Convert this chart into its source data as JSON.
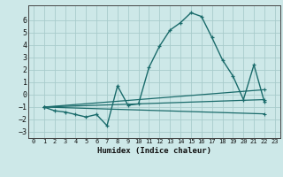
{
  "xlabel": "Humidex (Indice chaleur)",
  "xlim": [
    -0.5,
    23.5
  ],
  "ylim": [
    -3.5,
    7.2
  ],
  "yticks": [
    -3,
    -2,
    -1,
    0,
    1,
    2,
    3,
    4,
    5,
    6
  ],
  "xticks": [
    0,
    1,
    2,
    3,
    4,
    5,
    6,
    7,
    8,
    9,
    10,
    11,
    12,
    13,
    14,
    15,
    16,
    17,
    18,
    19,
    20,
    21,
    22,
    23
  ],
  "bg_color": "#cde8e8",
  "grid_color": "#a8cccc",
  "line_color": "#1a6b6b",
  "lines": [
    {
      "x": [
        1,
        2,
        3,
        4,
        5,
        6,
        7,
        8,
        9,
        10,
        11,
        12,
        13,
        14,
        15,
        16,
        17,
        18,
        19,
        20,
        21,
        22
      ],
      "y": [
        -1.0,
        -1.3,
        -1.4,
        -1.6,
        -1.8,
        -1.6,
        -2.5,
        0.7,
        -0.85,
        -0.75,
        2.2,
        3.9,
        5.2,
        5.8,
        6.6,
        6.3,
        4.6,
        2.8,
        1.5,
        -0.4,
        2.4,
        -0.6
      ]
    },
    {
      "x": [
        1,
        22
      ],
      "y": [
        -1.0,
        -1.55
      ]
    },
    {
      "x": [
        1,
        22
      ],
      "y": [
        -1.0,
        -0.4
      ]
    },
    {
      "x": [
        1,
        22
      ],
      "y": [
        -1.0,
        0.4
      ]
    }
  ]
}
